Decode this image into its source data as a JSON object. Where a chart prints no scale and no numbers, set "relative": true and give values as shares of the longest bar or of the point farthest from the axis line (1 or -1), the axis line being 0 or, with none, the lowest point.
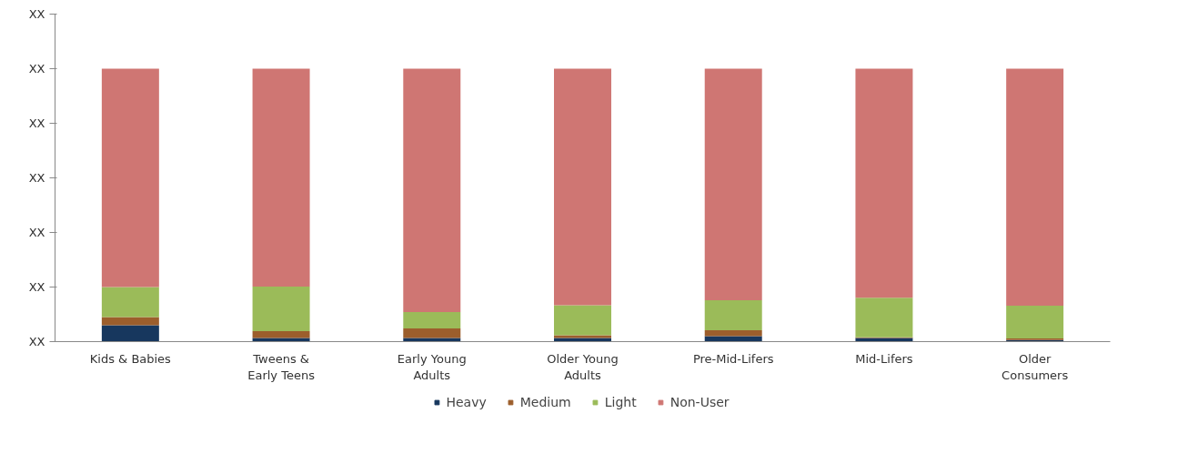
{
  "chart_data": {
    "type": "bar",
    "stacked": true,
    "relative": true,
    "categories": [
      "Kids & Babies",
      "Tweens &\nEarly Teens",
      "Early Young\nAdults",
      "Older Young\nAdults",
      "Pre-Mid-Lifers",
      "Mid-Lifers",
      "Older\nConsumers"
    ],
    "series": [
      {
        "name": "Heavy",
        "color": "#17375e",
        "values": [
          0.06,
          0.013,
          0.013,
          0.013,
          0.02,
          0.013,
          0.006
        ]
      },
      {
        "name": "Medium",
        "color": "#9c5e2c",
        "values": [
          0.03,
          0.025,
          0.035,
          0.01,
          0.022,
          0.003,
          0.006
        ]
      },
      {
        "name": "Light",
        "color": "#9bbb59",
        "values": [
          0.11,
          0.164,
          0.06,
          0.11,
          0.11,
          0.145,
          0.12
        ]
      },
      {
        "name": "Non-User",
        "color": "#cf7673",
        "values": [
          0.8,
          0.798,
          0.892,
          0.867,
          0.848,
          0.839,
          0.868
        ]
      }
    ],
    "annotations": [
      "XX",
      "XX",
      "XX",
      "XX",
      "XX",
      "XX",
      "XX"
    ],
    "grid": false,
    "legend": "bottom"
  }
}
